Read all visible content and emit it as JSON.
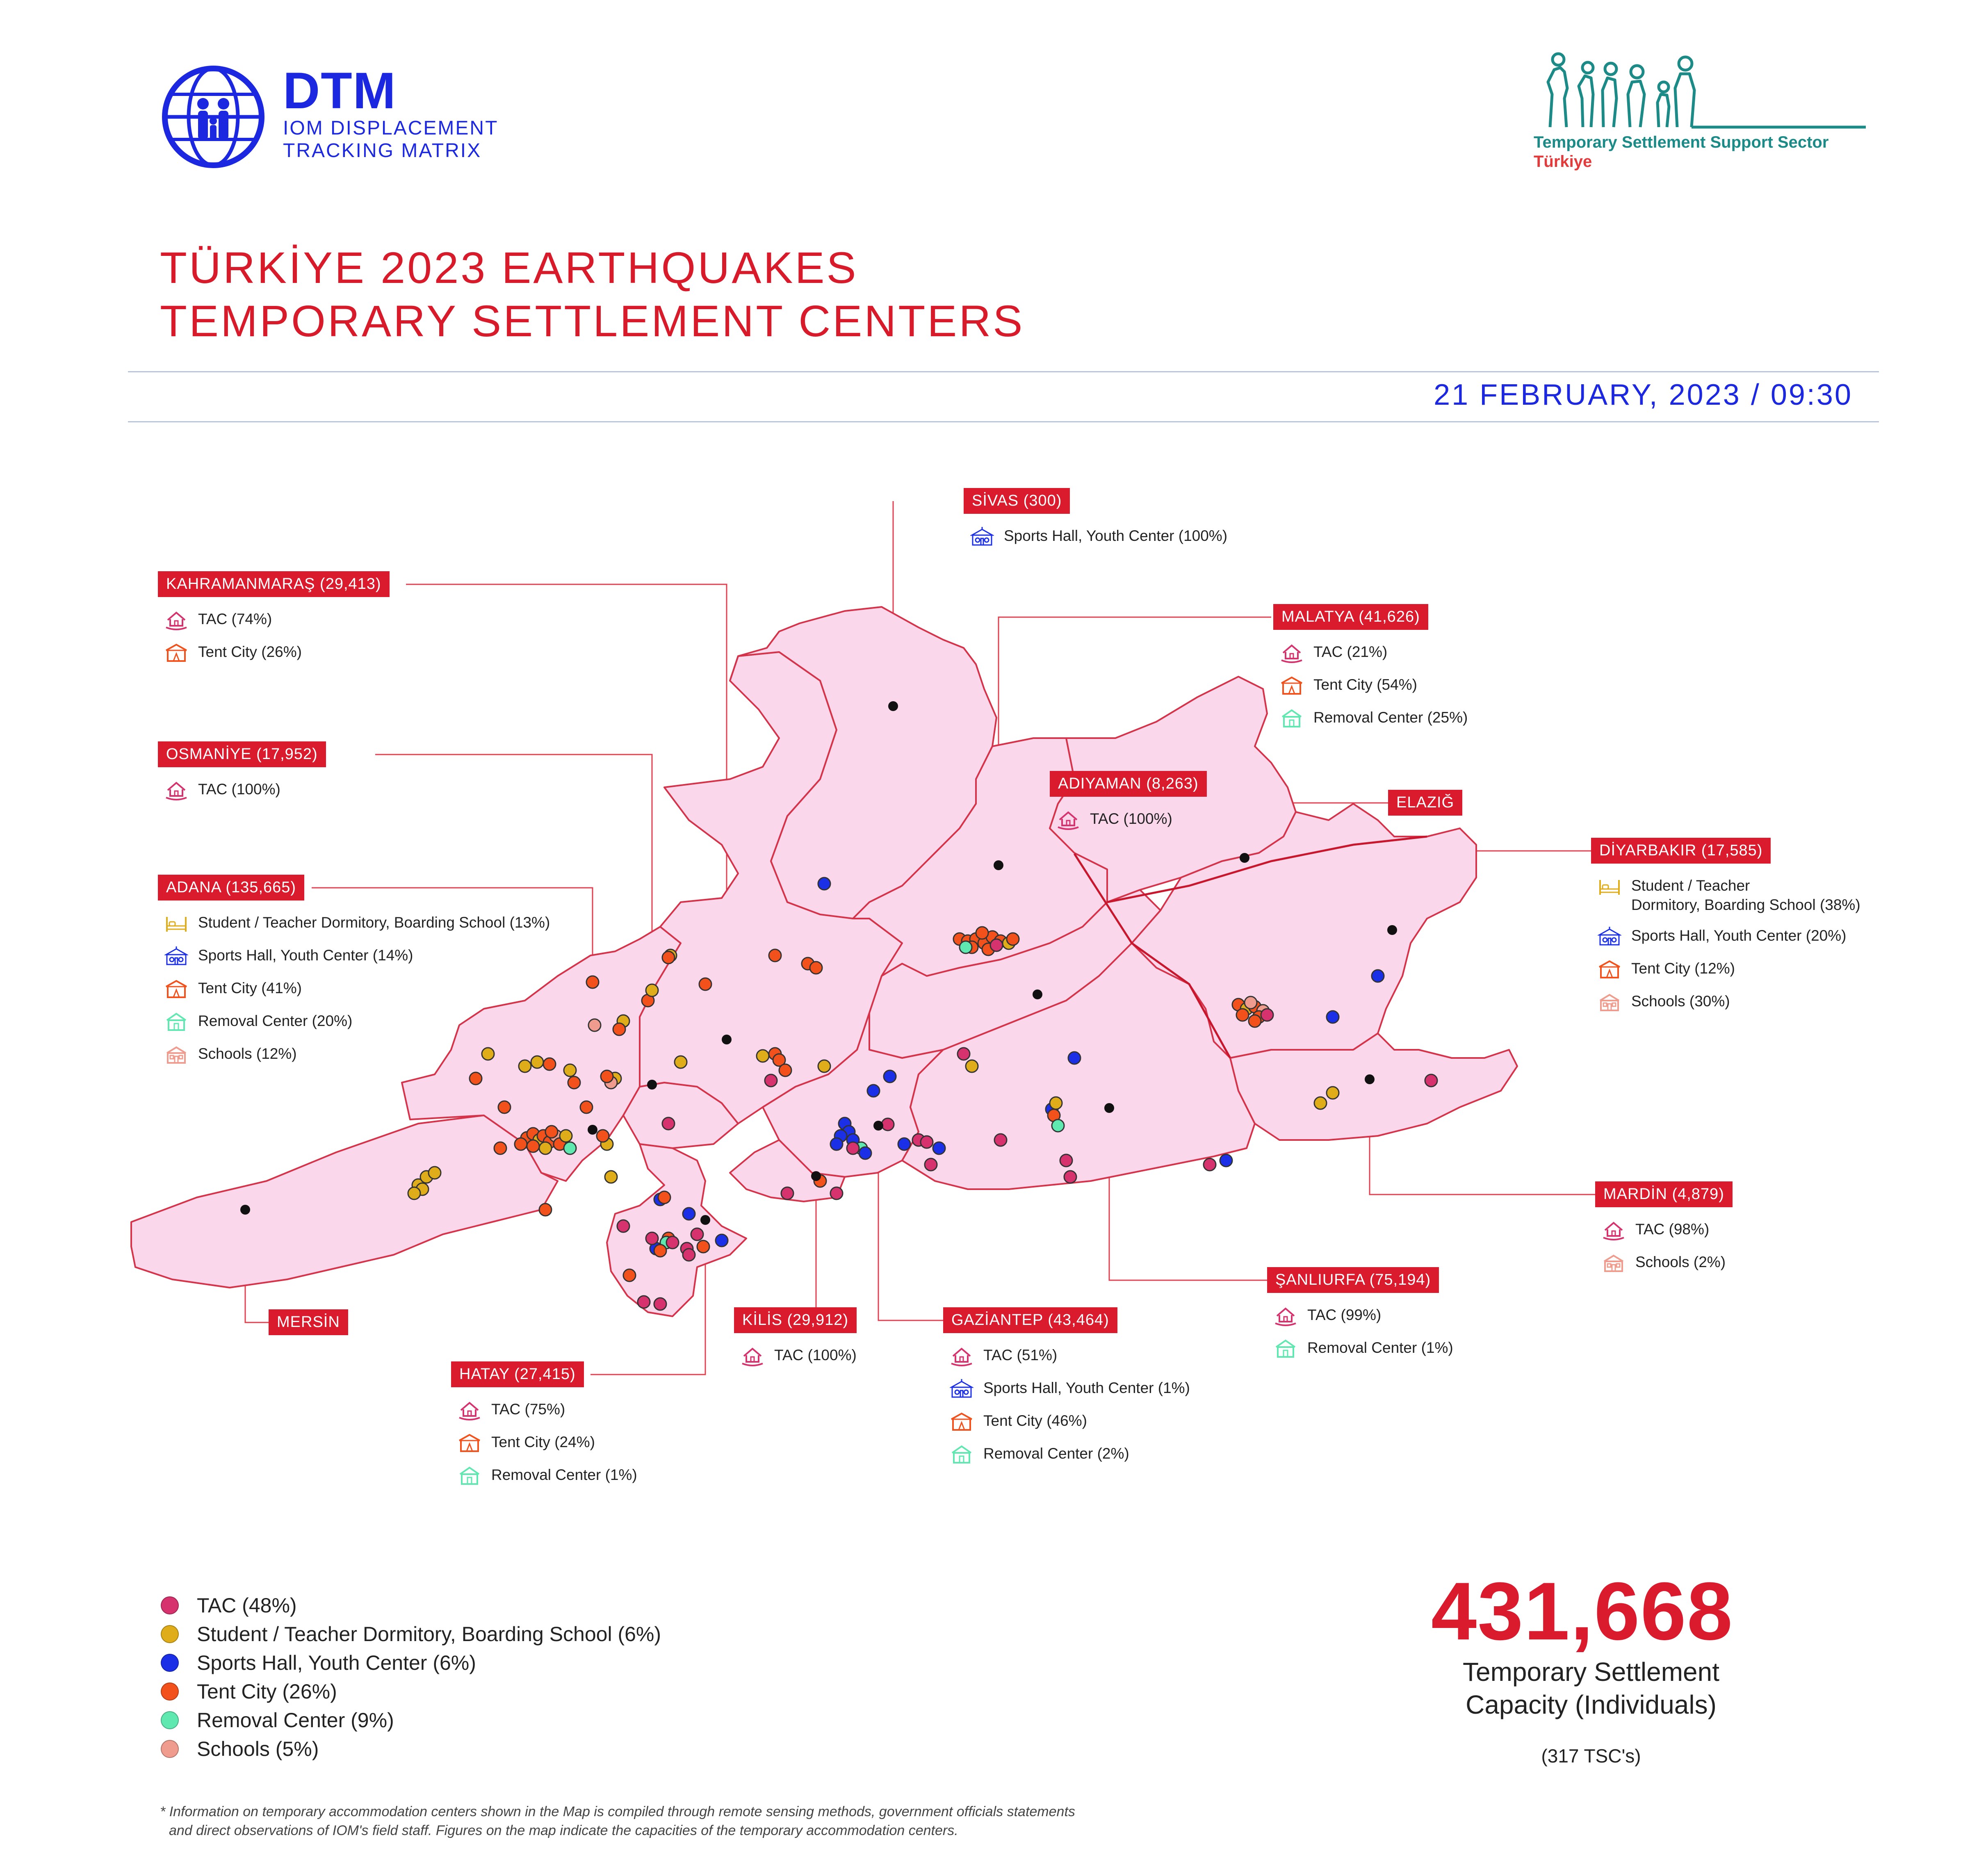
{
  "header": {
    "logo_main": "DTM",
    "logo_line1": "IOM DISPLACEMENT",
    "logo_line2": "TRACKING MATRIX",
    "sector_name": "Temporary Settlement Support Sector",
    "sector_country": "Türkiye"
  },
  "title": {
    "line1": "TÜRKİYE 2023 EARTHQUAKES",
    "line2": "TEMPORARY SETTLEMENT CENTERS"
  },
  "date": "21 FEBRUARY, 2023 / 09:30",
  "colors": {
    "accent_red": "#da1a2d",
    "dtm_blue": "#1b28e0",
    "map_fill": "#fad7ea",
    "map_border": "#d4334a",
    "tac": "#d6326e",
    "dormitory": "#e0ad1a",
    "sports_hall": "#1b2fe6",
    "tent_city": "#f2511c",
    "removal_center": "#5fe8b0",
    "schools": "#ef9c8e"
  },
  "provinces": {
    "sivas": {
      "label": "SİVAS (300)",
      "items": [
        {
          "icon": "sports-hall-icon",
          "text": "Sports Hall, Youth Center (100%)"
        }
      ]
    },
    "kahramanmaras": {
      "label": "KAHRAMANMARAŞ (29,413)",
      "items": [
        {
          "icon": "tac-icon",
          "text": "TAC (74%)"
        },
        {
          "icon": "tent-city-icon",
          "text": "Tent City (26%)"
        }
      ]
    },
    "malatya": {
      "label": "MALATYA (41,626)",
      "items": [
        {
          "icon": "tac-icon",
          "text": "TAC (21%)"
        },
        {
          "icon": "tent-city-icon",
          "text": "Tent City (54%)"
        },
        {
          "icon": "removal-center-icon",
          "text": "Removal Center (25%)"
        }
      ]
    },
    "osmaniye": {
      "label": "OSMANİYE (17,952)",
      "items": [
        {
          "icon": "tac-icon",
          "text": "TAC (100%)"
        }
      ]
    },
    "adiyaman": {
      "label": "ADIYAMAN (8,263)",
      "items": [
        {
          "icon": "tac-icon",
          "text": "TAC (100%)"
        }
      ]
    },
    "elazig": {
      "label": "ELAZIĞ",
      "items": []
    },
    "diyarbakir": {
      "label": "DİYARBAKIR (17,585)",
      "items": [
        {
          "icon": "dormitory-icon",
          "text": "Student / Teacher",
          "text2": "Dormitory, Boarding School (38%)"
        },
        {
          "icon": "sports-hall-icon",
          "text": "Sports Hall, Youth Center (20%)"
        },
        {
          "icon": "tent-city-icon",
          "text": "Tent City (12%)"
        },
        {
          "icon": "schools-icon",
          "text": "Schools (30%)"
        }
      ]
    },
    "adana": {
      "label": "ADANA (135,665)",
      "items": [
        {
          "icon": "dormitory-icon",
          "text": "Student / Teacher Dormitory, Boarding School (13%)"
        },
        {
          "icon": "sports-hall-icon",
          "text": "Sports Hall, Youth Center (14%)"
        },
        {
          "icon": "tent-city-icon",
          "text": "Tent City (41%)"
        },
        {
          "icon": "removal-center-icon",
          "text": "Removal Center (20%)"
        },
        {
          "icon": "schools-icon",
          "text": "Schools (12%)"
        }
      ]
    },
    "mardin": {
      "label": "MARDİN (4,879)",
      "items": [
        {
          "icon": "tac-icon",
          "text": "TAC (98%)"
        },
        {
          "icon": "schools-icon",
          "text": "Schools (2%)"
        }
      ]
    },
    "sanliurfa": {
      "label": "ŞANLIURFA (75,194)",
      "items": [
        {
          "icon": "tac-icon",
          "text": "TAC (99%)"
        },
        {
          "icon": "removal-center-icon",
          "text": "Removal Center (1%)"
        }
      ]
    },
    "mersin": {
      "label": "MERSİN",
      "items": []
    },
    "kilis": {
      "label": "KİLİS (29,912)",
      "items": [
        {
          "icon": "tac-icon",
          "text": "TAC (100%)"
        }
      ]
    },
    "gaziantep": {
      "label": "GAZİANTEP (43,464)",
      "items": [
        {
          "icon": "tac-icon",
          "text": "TAC (51%)"
        },
        {
          "icon": "sports-hall-icon",
          "text": "Sports Hall, Youth Center (1%)"
        },
        {
          "icon": "tent-city-icon",
          "text": "Tent City (46%)"
        },
        {
          "icon": "removal-center-icon",
          "text": "Removal Center (2%)"
        }
      ]
    },
    "hatay": {
      "label": "HATAY (27,415)",
      "items": [
        {
          "icon": "tac-icon",
          "text": "TAC (75%)"
        },
        {
          "icon": "tent-city-icon",
          "text": "Tent City (24%)"
        },
        {
          "icon": "removal-center-icon",
          "text": "Removal Center (1%)"
        }
      ]
    }
  },
  "legend": [
    {
      "label": "TAC (48%)",
      "color": "#d6326e"
    },
    {
      "label": "Student / Teacher Dormitory, Boarding School (6%)",
      "color": "#e0ad1a"
    },
    {
      "label": "Sports Hall, Youth Center (6%)",
      "color": "#1b2fe6"
    },
    {
      "label": "Tent City (26%)",
      "color": "#f2511c"
    },
    {
      "label": "Removal Center (9%)",
      "color": "#5fe8b0"
    },
    {
      "label": "Schools (5%)",
      "color": "#ef9c8e"
    }
  ],
  "summary": {
    "total": "431,668",
    "caption_line1": "Temporary Settlement",
    "caption_line2": "Capacity (Individuals)",
    "count": "(317 TSC's)"
  },
  "footnote": {
    "marker": "*",
    "line1": "Information on temporary accommodation centers shown in the Map is compiled through remote sensing methods, government officials statements",
    "line2": "and direct observations of IOM's field staff. Figures on the map indicate the capacities of the temporary accommodation centers."
  }
}
